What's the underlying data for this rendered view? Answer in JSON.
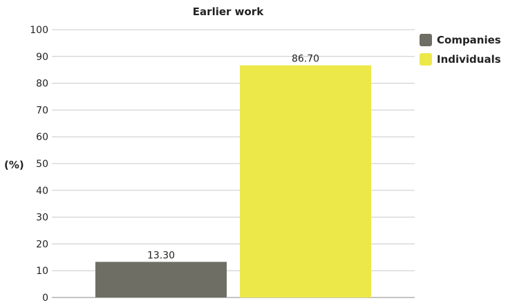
{
  "chart_data": {
    "type": "bar",
    "title": "Earlier work",
    "ylabel": "(%)",
    "xlabel": "",
    "categories": [
      "Companies",
      "Individuals"
    ],
    "values": [
      13.3,
      86.7
    ],
    "value_labels": [
      "13.30",
      "86.70"
    ],
    "ylim": [
      0,
      100
    ],
    "yticks": [
      0,
      10,
      20,
      30,
      40,
      50,
      60,
      70,
      80,
      90,
      100
    ],
    "colors": [
      "#6e6e64",
      "#ede84a"
    ],
    "legend": {
      "placement": "right",
      "entries": [
        "Companies",
        "Individuals"
      ]
    },
    "grid": true
  }
}
